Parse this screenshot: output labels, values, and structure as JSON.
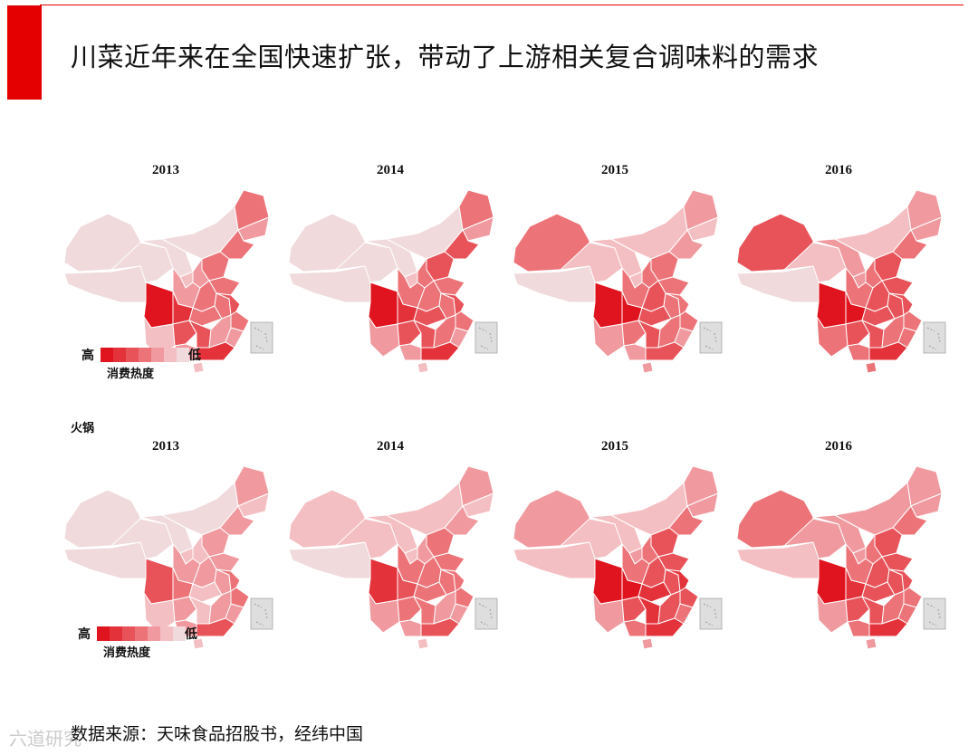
{
  "title": "川菜近年来在全国快速扩张，带动了上游相关复合调味料的需求",
  "legend": {
    "high": "高",
    "low": "低",
    "caption": "消费热度",
    "colors": [
      "#e0141e",
      "#e4323b",
      "#e8535a",
      "#ec7479",
      "#f09aa0",
      "#f4bfc2",
      "#f0dadc"
    ]
  },
  "colors": {
    "accent": "#e40000",
    "inset_bg": "#dedede",
    "border": "#ffffff"
  },
  "maps": [
    {
      "label": "",
      "panels": [
        {
          "year": "2013",
          "levels": {
            "xinjiang": 6,
            "tibet": 6,
            "qinghai": 6,
            "gansu": 6,
            "inner_mongolia": 6,
            "heilongjiang": 3,
            "jilin": 4,
            "liaoning": 3,
            "beijing_hebei": 3,
            "shanxi": 4,
            "shaanxi": 4,
            "ningxia": 5,
            "henan": 3,
            "shandong": 3,
            "sichuan": 0,
            "chongqing": 1,
            "yunnan": 5,
            "guizhou": 2,
            "hubei": 3,
            "hunan": 2,
            "jiangxi": 4,
            "anhui": 3,
            "jiangsu": 2,
            "zhejiang": 3,
            "fujian": 4,
            "guangdong": 1,
            "guangxi": 4,
            "hainan": 5
          }
        },
        {
          "year": "2014",
          "levels": {
            "xinjiang": 6,
            "tibet": 6,
            "qinghai": 6,
            "gansu": 6,
            "inner_mongolia": 6,
            "heilongjiang": 3,
            "jilin": 4,
            "liaoning": 2,
            "beijing_hebei": 2,
            "shanxi": 3,
            "shaanxi": 3,
            "ningxia": 5,
            "henan": 3,
            "shandong": 3,
            "sichuan": 0,
            "chongqing": 1,
            "yunnan": 4,
            "guizhou": 2,
            "hubei": 2,
            "hunan": 2,
            "jiangxi": 3,
            "anhui": 3,
            "jiangsu": 2,
            "zhejiang": 3,
            "fujian": 4,
            "guangdong": 1,
            "guangxi": 4,
            "hainan": 5
          }
        },
        {
          "year": "2015",
          "levels": {
            "xinjiang": 3,
            "tibet": 6,
            "qinghai": 5,
            "gansu": 5,
            "inner_mongolia": 5,
            "heilongjiang": 4,
            "jilin": 5,
            "liaoning": 4,
            "beijing_hebei": 3,
            "shanxi": 3,
            "shaanxi": 3,
            "ningxia": 5,
            "henan": 2,
            "shandong": 3,
            "sichuan": 0,
            "chongqing": 0,
            "yunnan": 4,
            "guizhou": 3,
            "hubei": 2,
            "hunan": 2,
            "jiangxi": 3,
            "anhui": 3,
            "jiangsu": 3,
            "zhejiang": 3,
            "fujian": 4,
            "guangdong": 2,
            "guangxi": 4,
            "hainan": 4
          }
        },
        {
          "year": "2016",
          "levels": {
            "xinjiang": 2,
            "tibet": 6,
            "qinghai": 5,
            "gansu": 4,
            "inner_mongolia": 5,
            "heilongjiang": 4,
            "jilin": 4,
            "liaoning": 3,
            "beijing_hebei": 2,
            "shanxi": 3,
            "shaanxi": 3,
            "ningxia": 4,
            "henan": 2,
            "shandong": 2,
            "sichuan": 0,
            "chongqing": 0,
            "yunnan": 3,
            "guizhou": 2,
            "hubei": 2,
            "hunan": 2,
            "jiangxi": 3,
            "anhui": 2,
            "jiangsu": 2,
            "zhejiang": 3,
            "fujian": 3,
            "guangdong": 1,
            "guangxi": 3,
            "hainan": 3
          }
        }
      ]
    },
    {
      "label": "火锅",
      "panels": [
        {
          "year": "2013",
          "levels": {
            "xinjiang": 6,
            "tibet": 6,
            "qinghai": 6,
            "gansu": 6,
            "inner_mongolia": 6,
            "heilongjiang": 4,
            "jilin": 5,
            "liaoning": 4,
            "beijing_hebei": 4,
            "shanxi": 5,
            "shaanxi": 4,
            "ningxia": 5,
            "henan": 4,
            "shandong": 4,
            "sichuan": 2,
            "chongqing": 3,
            "yunnan": 5,
            "guizhou": 4,
            "hubei": 5,
            "hunan": 5,
            "jiangxi": 4,
            "anhui": 4,
            "jiangsu": 3,
            "zhejiang": 3,
            "fujian": 4,
            "guangdong": 2,
            "guangxi": 4,
            "hainan": 5
          }
        },
        {
          "year": "2014",
          "levels": {
            "xinjiang": 5,
            "tibet": 6,
            "qinghai": 5,
            "gansu": 5,
            "inner_mongolia": 5,
            "heilongjiang": 4,
            "jilin": 5,
            "liaoning": 4,
            "beijing_hebei": 3,
            "shanxi": 4,
            "shaanxi": 3,
            "ningxia": 5,
            "henan": 3,
            "shandong": 3,
            "sichuan": 1,
            "chongqing": 2,
            "yunnan": 4,
            "guizhou": 3,
            "hubei": 3,
            "hunan": 3,
            "jiangxi": 4,
            "anhui": 3,
            "jiangsu": 3,
            "zhejiang": 3,
            "fujian": 4,
            "guangdong": 2,
            "guangxi": 4,
            "hainan": 5
          }
        },
        {
          "year": "2015",
          "levels": {
            "xinjiang": 4,
            "tibet": 5,
            "qinghai": 5,
            "gansu": 5,
            "inner_mongolia": 5,
            "heilongjiang": 4,
            "jilin": 4,
            "liaoning": 3,
            "beijing_hebei": 2,
            "shanxi": 3,
            "shaanxi": 3,
            "ningxia": 4,
            "henan": 2,
            "shandong": 2,
            "sichuan": 0,
            "chongqing": 0,
            "yunnan": 4,
            "guizhou": 2,
            "hubei": 1,
            "hunan": 1,
            "jiangxi": 2,
            "anhui": 2,
            "jiangsu": 1,
            "zhejiang": 2,
            "fujian": 3,
            "guangdong": 1,
            "guangxi": 3,
            "hainan": 4
          }
        },
        {
          "year": "2016",
          "levels": {
            "xinjiang": 3,
            "tibet": 5,
            "qinghai": 4,
            "gansu": 4,
            "inner_mongolia": 4,
            "heilongjiang": 4,
            "jilin": 4,
            "liaoning": 3,
            "beijing_hebei": 2,
            "shanxi": 3,
            "shaanxi": 3,
            "ningxia": 4,
            "henan": 2,
            "shandong": 2,
            "sichuan": 0,
            "chongqing": 1,
            "yunnan": 4,
            "guizhou": 2,
            "hubei": 2,
            "hunan": 2,
            "jiangxi": 3,
            "anhui": 2,
            "jiangsu": 2,
            "zhejiang": 3,
            "fujian": 3,
            "guangdong": 1,
            "guangxi": 3,
            "hainan": 4
          }
        }
      ]
    }
  ],
  "source": "数据来源：天味食品招股书，经纬中国",
  "watermark": "六道研究"
}
